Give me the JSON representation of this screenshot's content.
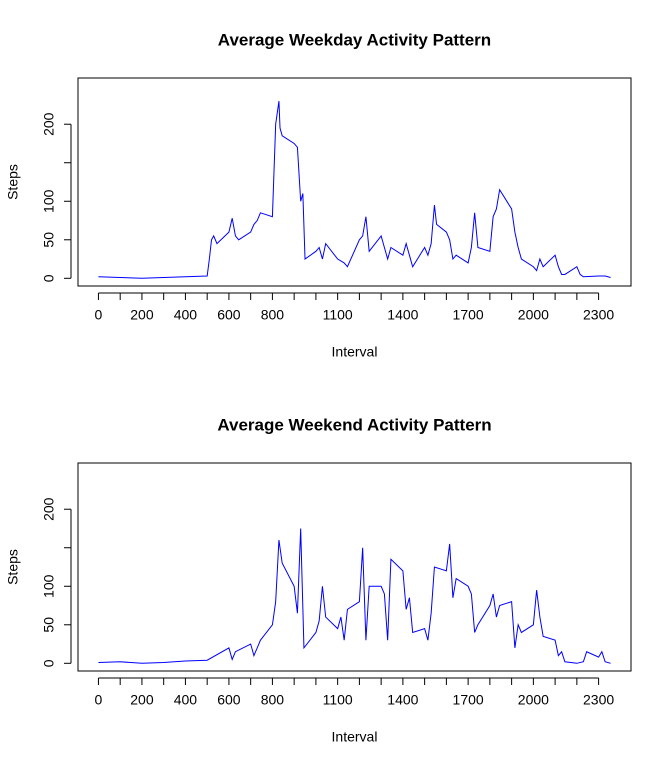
{
  "chart_data": [
    {
      "type": "line",
      "title": "Average Weekday Activity Pattern",
      "xlabel": "Interval",
      "ylabel": "Steps",
      "x": [
        0,
        100,
        200,
        300,
        400,
        500,
        510,
        520,
        530,
        545,
        600,
        615,
        630,
        645,
        700,
        715,
        730,
        745,
        800,
        815,
        830,
        835,
        845,
        900,
        915,
        930,
        940,
        950,
        1000,
        1015,
        1030,
        1045,
        1100,
        1130,
        1145,
        1200,
        1215,
        1230,
        1245,
        1300,
        1315,
        1330,
        1345,
        1400,
        1415,
        1430,
        1445,
        1500,
        1515,
        1530,
        1545,
        1555,
        1600,
        1615,
        1630,
        1645,
        1700,
        1715,
        1730,
        1745,
        1800,
        1815,
        1830,
        1845,
        1900,
        1915,
        1930,
        1945,
        2000,
        2015,
        2030,
        2045,
        2100,
        2115,
        2130,
        2145,
        2200,
        2215,
        2230,
        2300,
        2330,
        2355
      ],
      "series": [
        {
          "name": "Steps",
          "color": "#0000ff",
          "values": [
            2,
            1,
            0,
            1,
            2,
            3,
            25,
            50,
            55,
            45,
            60,
            78,
            55,
            50,
            60,
            70,
            75,
            85,
            80,
            200,
            230,
            195,
            185,
            175,
            170,
            100,
            110,
            25,
            35,
            40,
            25,
            45,
            25,
            20,
            15,
            50,
            55,
            80,
            35,
            55,
            40,
            25,
            40,
            30,
            45,
            30,
            15,
            40,
            30,
            45,
            95,
            70,
            60,
            50,
            25,
            30,
            20,
            40,
            85,
            40,
            35,
            80,
            90,
            115,
            90,
            60,
            40,
            25,
            15,
            10,
            25,
            15,
            30,
            15,
            5,
            5,
            15,
            5,
            2,
            3,
            3,
            1
          ]
        }
      ],
      "xlim": [
        -94,
        2449
      ],
      "xticks": [
        0,
        200,
        400,
        600,
        800,
        1100,
        1400,
        1700,
        2000,
        2300
      ],
      "xminorticks": [
        100,
        300,
        500,
        700,
        900,
        1000,
        1200,
        1300,
        1500,
        1600,
        1800,
        1900,
        2100,
        2200
      ],
      "ylim": [
        -10,
        260
      ],
      "yticks": [
        0,
        50,
        100,
        200
      ],
      "yminorticks": [
        150
      ]
    },
    {
      "type": "line",
      "title": "Average Weekend Activity Pattern",
      "xlabel": "Interval",
      "ylabel": "Steps",
      "x": [
        0,
        100,
        200,
        300,
        400,
        500,
        600,
        615,
        630,
        700,
        715,
        730,
        745,
        800,
        815,
        830,
        845,
        900,
        915,
        930,
        945,
        1000,
        1015,
        1030,
        1045,
        1100,
        1115,
        1130,
        1145,
        1200,
        1215,
        1230,
        1245,
        1300,
        1315,
        1330,
        1345,
        1400,
        1415,
        1430,
        1445,
        1500,
        1515,
        1530,
        1545,
        1600,
        1615,
        1630,
        1645,
        1700,
        1715,
        1730,
        1745,
        1800,
        1815,
        1830,
        1845,
        1900,
        1915,
        1930,
        1945,
        2000,
        2015,
        2030,
        2045,
        2100,
        2115,
        2130,
        2145,
        2200,
        2230,
        2245,
        2300,
        2315,
        2330,
        2355
      ],
      "series": [
        {
          "name": "Steps",
          "color": "#0000ff",
          "values": [
            1,
            2,
            0,
            1,
            3,
            4,
            20,
            5,
            15,
            25,
            10,
            20,
            30,
            50,
            80,
            160,
            130,
            100,
            65,
            175,
            20,
            40,
            55,
            100,
            60,
            45,
            60,
            30,
            70,
            80,
            150,
            30,
            100,
            100,
            90,
            30,
            135,
            120,
            70,
            85,
            40,
            45,
            30,
            65,
            125,
            120,
            155,
            85,
            110,
            100,
            90,
            40,
            50,
            75,
            90,
            60,
            75,
            80,
            20,
            50,
            40,
            50,
            95,
            60,
            35,
            30,
            10,
            15,
            2,
            0,
            2,
            15,
            8,
            15,
            2,
            0
          ]
        }
      ],
      "xlim": [
        -94,
        2449
      ],
      "xticks": [
        0,
        200,
        400,
        600,
        800,
        1100,
        1400,
        1700,
        2000,
        2300
      ],
      "xminorticks": [
        100,
        300,
        500,
        700,
        900,
        1000,
        1200,
        1300,
        1500,
        1600,
        1800,
        1900,
        2100,
        2200
      ],
      "ylim": [
        -10,
        260
      ],
      "yticks": [
        0,
        50,
        100,
        200
      ],
      "yminorticks": [
        150
      ]
    }
  ]
}
